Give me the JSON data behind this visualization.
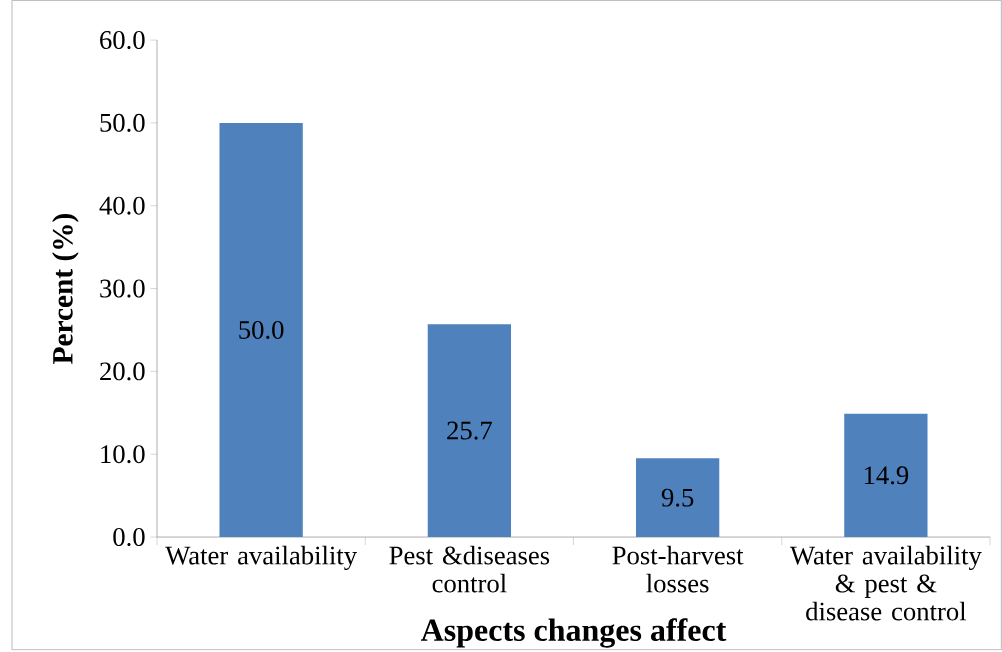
{
  "chart_data": {
    "type": "bar",
    "xlabel": "Aspects changes affect",
    "ylabel": "Percent (%)",
    "categories": [
      "Water availability",
      "Pest &diseases control",
      "Post-harvest losses",
      "Water availability & pest & disease control"
    ],
    "values": [
      50.0,
      25.7,
      9.5,
      14.9
    ],
    "value_labels": [
      "50.0",
      "25.7",
      "9.5",
      "14.9"
    ],
    "color": "#4f81bd",
    "ylim": [
      0,
      60
    ],
    "yticks": [
      {
        "value": 0,
        "label": "0.0"
      },
      {
        "value": 10,
        "label": "10.0"
      },
      {
        "value": 20,
        "label": "20.0"
      },
      {
        "value": 30,
        "label": "30.0"
      },
      {
        "value": 40,
        "label": "40.0"
      },
      {
        "value": 50,
        "label": "50.0"
      },
      {
        "value": 60,
        "label": "60.0"
      }
    ],
    "grid": false
  }
}
